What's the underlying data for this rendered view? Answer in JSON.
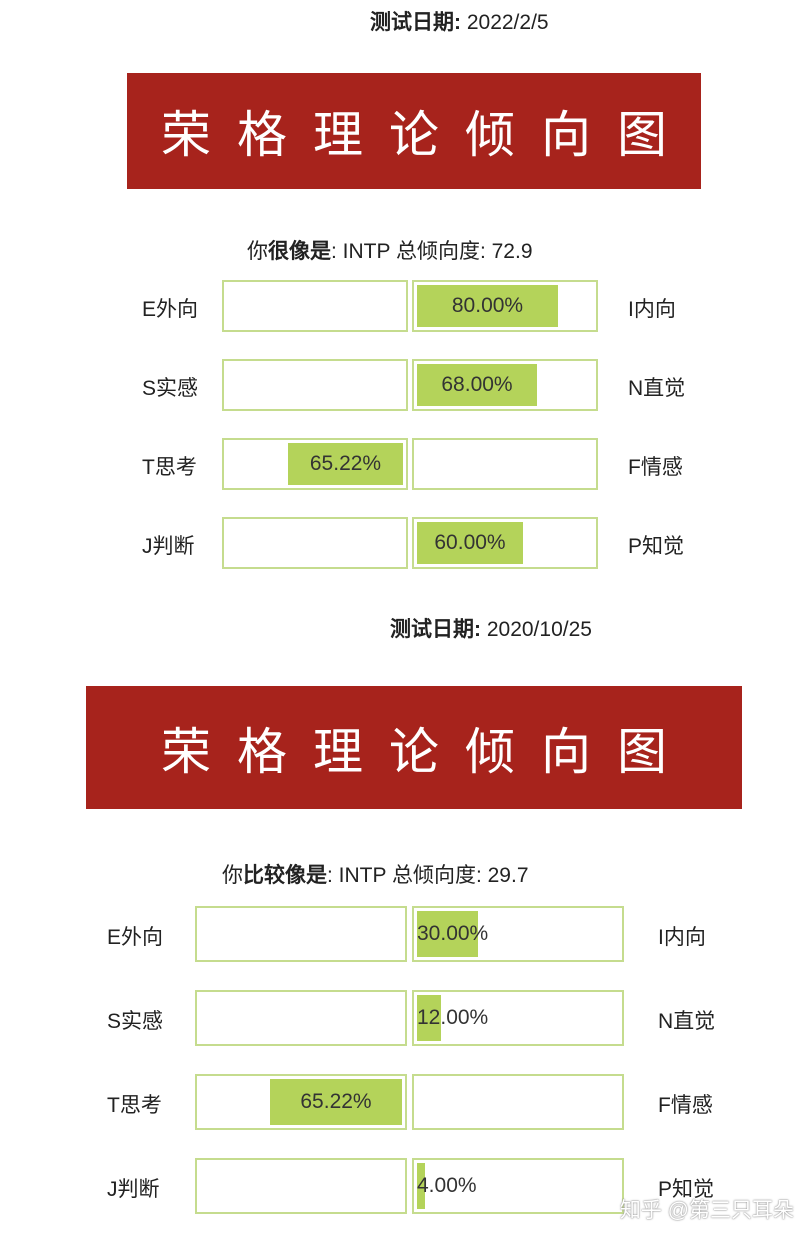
{
  "test1": {
    "date_label": "测试日期:",
    "date_value": "2022/2/5",
    "banner_title": "荣格理论倾向图",
    "summary_prefix": "你",
    "summary_strong": "很像是",
    "summary_rest": ": INTP 总倾向度: 72.9",
    "rows": [
      {
        "left": "E外向",
        "right": "I内向",
        "side": "right",
        "percent": 80.0,
        "label": "80.00%"
      },
      {
        "left": "S实感",
        "right": "N直觉",
        "side": "right",
        "percent": 68.0,
        "label": "68.00%"
      },
      {
        "left": "T思考",
        "right": "F情感",
        "side": "left",
        "percent": 65.22,
        "label": "65.22%"
      },
      {
        "left": "J判断",
        "right": "P知觉",
        "side": "right",
        "percent": 60.0,
        "label": "60.00%"
      }
    ]
  },
  "test2": {
    "date_label": "测试日期:",
    "date_value": "2020/10/25",
    "banner_title": "荣格理论倾向图",
    "summary_prefix": "你",
    "summary_strong": "比较像是",
    "summary_rest": ": INTP 总倾向度: 29.7",
    "rows": [
      {
        "left": "E外向",
        "right": "I内向",
        "side": "right",
        "percent": 30.0,
        "label": "30.00%"
      },
      {
        "left": "S实感",
        "right": "N直觉",
        "side": "right",
        "percent": 12.0,
        "label": "12.00%"
      },
      {
        "left": "T思考",
        "right": "F情感",
        "side": "left",
        "percent": 65.22,
        "label": "65.22%"
      },
      {
        "left": "J判断",
        "right": "P知觉",
        "side": "right",
        "percent": 4.0,
        "label": "4.00%"
      }
    ]
  },
  "watermark": "知乎 @第三只耳朵",
  "colors": {
    "banner": "#a7231c",
    "bar_fill": "#b4d35a",
    "box_border": "#c5dc8e"
  }
}
